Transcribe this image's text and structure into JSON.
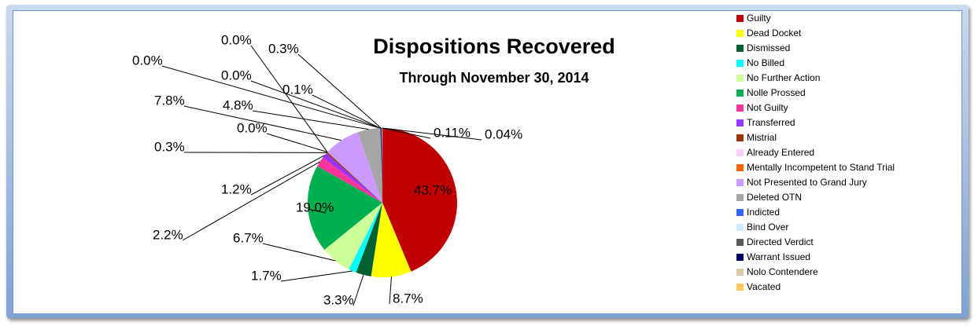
{
  "chart_data": {
    "type": "pie",
    "title": "Dispositions Recovered",
    "subtitle": "Through November 30, 2014",
    "categories": [
      "Guilty",
      "Dead Docket",
      "Dismissed",
      "No Billed",
      "No Further Action",
      "Nolle Prossed",
      "Not Guilty",
      "Transferred",
      "Mistrial",
      "Already Entered",
      "Mentally Incompetent to Stand Trial",
      "Not Presented to Grand Jury",
      "Deleted OTN",
      "Indicted",
      "Bind Over",
      "Directed Verdict",
      "Warrant Issued",
      "Nolo Contendere",
      "Vacated"
    ],
    "values": [
      43.7,
      8.7,
      3.3,
      1.7,
      6.7,
      19.0,
      2.2,
      1.2,
      0.3,
      0.0,
      0.0,
      7.8,
      4.8,
      0.0,
      0.1,
      0.0,
      0.3,
      0.11,
      0.04
    ],
    "value_labels": [
      "43.7%",
      "8.7%",
      "3.3%",
      "1.7%",
      "6.7%",
      "19.0%",
      "2.2%",
      "1.2%",
      "0.3%",
      "0.0%",
      "0.0%",
      "7.8%",
      "4.8%",
      "0.0%",
      "0.1%",
      "0.0%",
      "0.3%",
      "0.11%",
      "0.04%"
    ],
    "colors": [
      "#c00000",
      "#ffff00",
      "#00602f",
      "#00ffff",
      "#ccff99",
      "#00b050",
      "#ff3399",
      "#9933ff",
      "#993300",
      "#ffccff",
      "#ff6600",
      "#cc99ff",
      "#a6a6a6",
      "#3366ff",
      "#cceeff",
      "#595959",
      "#000066",
      "#ddc9a3",
      "#ffc85a"
    ],
    "legend": "right"
  }
}
